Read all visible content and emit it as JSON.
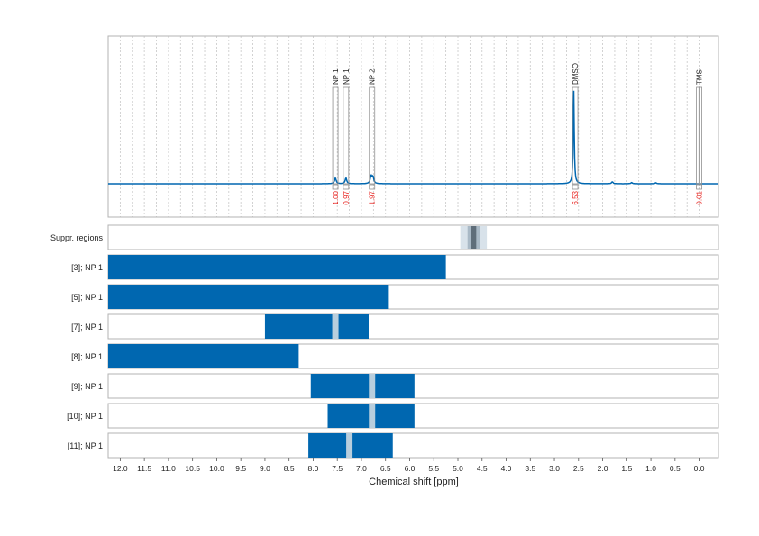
{
  "chart_data": {
    "type": "nmr_spectrum_with_region_bars",
    "xlabel": "Chemical shift [ppm]",
    "xlim": [
      12.25,
      -0.4
    ],
    "x_reversed": true,
    "x_ticks": [
      "12.0",
      "11.5",
      "11.0",
      "10.5",
      "10.0",
      "9.5",
      "9.0",
      "8.5",
      "8.0",
      "7.5",
      "7.0",
      "6.5",
      "6.0",
      "5.5",
      "5.0",
      "4.5",
      "4.0",
      "3.5",
      "3.0",
      "2.5",
      "2.0",
      "1.5",
      "1.0",
      "0.5",
      "0.0"
    ],
    "grid": "vertical dotted",
    "spectrum": {
      "peaks": [
        {
          "shift": 7.54,
          "height": 0.06
        },
        {
          "shift": 7.32,
          "height": 0.06
        },
        {
          "shift": 6.8,
          "height": 0.08
        },
        {
          "shift": 6.76,
          "height": 0.07
        },
        {
          "shift": 2.6,
          "height": 0.98
        },
        {
          "shift": 1.8,
          "height": 0.02
        },
        {
          "shift": 1.4,
          "height": 0.012
        },
        {
          "shift": 0.9,
          "height": 0.01
        }
      ]
    },
    "peak_annotations": [
      {
        "label": "NP 1",
        "shift": 7.54,
        "integral": "1.00"
      },
      {
        "label": "NP 1",
        "shift": 7.32,
        "integral": "0.97"
      },
      {
        "label": "NP 2",
        "shift": 6.78,
        "integral": "1.97"
      },
      {
        "label": "DMSO",
        "shift": 2.57,
        "integral": "6.53"
      },
      {
        "label": "TMS",
        "shift": 0.0,
        "integral": "0.01"
      }
    ],
    "region_rows": [
      {
        "label": "Suppr. regions",
        "kind": "suppression",
        "outer": [
          4.95,
          4.4
        ],
        "inner": [
          4.8,
          4.55
        ],
        "core": [
          4.72,
          4.62
        ]
      },
      {
        "label": "[3]; NP 1",
        "bars": [
          [
            12.25,
            5.25
          ]
        ],
        "markers": []
      },
      {
        "label": "[5]; NP 1",
        "bars": [
          [
            12.25,
            6.45
          ]
        ],
        "markers": []
      },
      {
        "label": "[7]; NP 1",
        "bars": [
          [
            9.0,
            6.85
          ]
        ],
        "markers": [
          7.54
        ]
      },
      {
        "label": "[8]; NP 1",
        "bars": [
          [
            12.25,
            8.3
          ]
        ],
        "markers": []
      },
      {
        "label": "[9]; NP 1",
        "bars": [
          [
            8.05,
            5.9
          ]
        ],
        "markers": [
          6.78
        ]
      },
      {
        "label": "[10]; NP 1",
        "bars": [
          [
            7.7,
            5.9
          ]
        ],
        "markers": [
          6.78
        ]
      },
      {
        "label": "[11]; NP 1",
        "bars": [
          [
            8.1,
            6.35
          ]
        ],
        "markers": [
          7.25
        ]
      }
    ],
    "colors": {
      "spectrum": "#0067b0",
      "bar": "#0067b0",
      "marker": "#b8cedd",
      "integral_text": "#e8231f",
      "frame": "#b3b3b3",
      "grid": "#c8c8c8",
      "suppression_outer": "#d8e2ea",
      "suppression_inner": "#a9b9c6",
      "suppression_core": "#5f6e7a"
    }
  }
}
